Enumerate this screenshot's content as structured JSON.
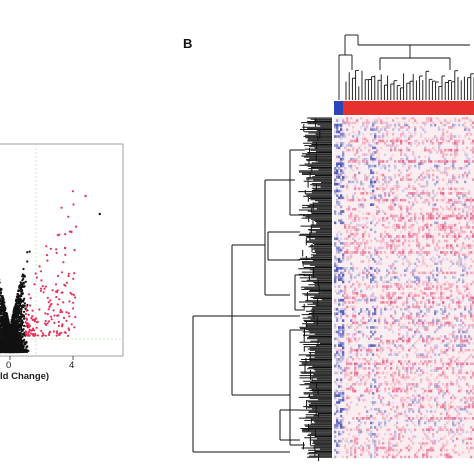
{
  "panel_label_b": "B",
  "volcano": {
    "xlabel_visible": "ld Change)",
    "x_ticks": [
      {
        "value": 0,
        "label": "0"
      },
      {
        "value": 4,
        "label": "4"
      }
    ],
    "colors": {
      "sig": "#e8315a",
      "nonsig": "#111111",
      "threshold": "#b8e6b0",
      "frame": "#888888"
    }
  },
  "heatmap": {
    "group_bar": {
      "colors": [
        "#2b45b8",
        "#e8302f"
      ],
      "first_group_fraction": 0.063
    },
    "colors": {
      "low": "#3a46b4",
      "mid": "#fbeef0",
      "high": "#e34675",
      "dendrogram": "#111111"
    }
  },
  "chart_data": [
    {
      "type": "scatter",
      "title": "",
      "xlabel": "ld Change)",
      "ylabel": "",
      "x_ticks": [
        0,
        4
      ],
      "series": [
        {
          "points_approx": 2600
        },
        {
          "points_approx": 180
        }
      ],
      "thresholds": {
        "vertical_x": 1,
        "horizontal": "near bottom"
      }
    },
    {
      "type": "heatmap",
      "title": "",
      "row_dendrogram": true,
      "column_dendrogram": true,
      "column_annotation": [
        "blue",
        "red"
      ],
      "colors": [
        "#3a46b4",
        "#fbeef0",
        "#e34675"
      ]
    }
  ]
}
